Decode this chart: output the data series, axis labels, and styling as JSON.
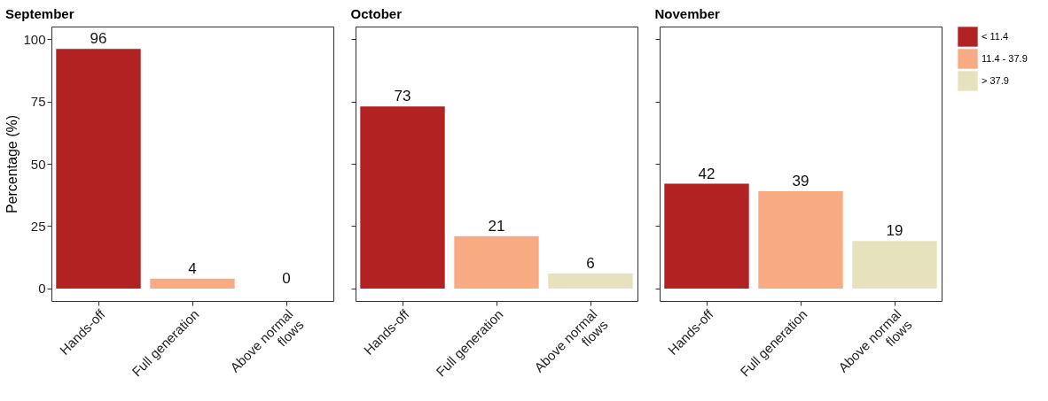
{
  "chart_data": [
    {
      "type": "bar",
      "title": "September",
      "ylabel": "Percentage (%)",
      "categories": [
        "Hands-off",
        "Full generation",
        "Above normal\nflows"
      ],
      "series": [
        {
          "color": "#b22222",
          "values": [
            96,
            null,
            null
          ]
        },
        {
          "color": "#f8aa82",
          "values": [
            null,
            4,
            null
          ]
        },
        {
          "color": "#e6e2bd",
          "values": [
            null,
            null,
            0
          ]
        }
      ],
      "ylim": [
        -5,
        105
      ],
      "yticks": [
        0,
        25,
        50,
        75,
        100
      ],
      "data_labels": true,
      "grid": false
    },
    {
      "type": "bar",
      "title": "October",
      "categories": [
        "Hands-off",
        "Full generation",
        "Above normal\nflows"
      ],
      "series": [
        {
          "color": "#b22222",
          "values": [
            73,
            null,
            null
          ]
        },
        {
          "color": "#f8aa82",
          "values": [
            null,
            21,
            null
          ]
        },
        {
          "color": "#e6e2bd",
          "values": [
            null,
            null,
            6
          ]
        }
      ],
      "ylim": [
        -5,
        105
      ],
      "yticks": [
        0,
        25,
        50,
        75,
        100
      ],
      "tick_labels": "x",
      "data_labels": true,
      "grid": false
    },
    {
      "type": "bar",
      "title": "November",
      "categories": [
        "Hands-off",
        "Full generation",
        "Above normal\nflows"
      ],
      "series": [
        {
          "name": "< 11.4",
          "color": "#b22222",
          "values": [
            42,
            null,
            null
          ]
        },
        {
          "name": "11.4 - 37.9",
          "color": "#f8aa82",
          "values": [
            null,
            39,
            null
          ]
        },
        {
          "name": "> 37.9",
          "color": "#e6e2bd",
          "values": [
            null,
            null,
            19
          ]
        }
      ],
      "ylim": [
        -5,
        105
      ],
      "yticks": [
        0,
        25,
        50,
        75,
        100
      ],
      "tick_labels": "x",
      "data_labels": true,
      "grid": false,
      "legend": "right"
    }
  ]
}
